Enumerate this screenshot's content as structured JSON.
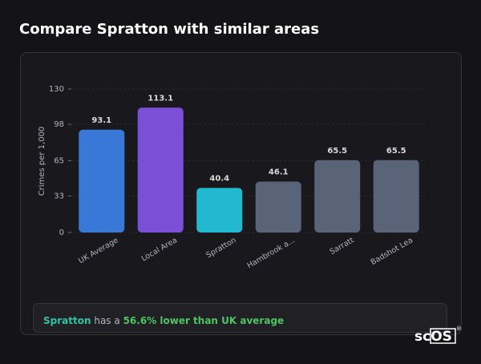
{
  "heading": "Compare Spratton with similar areas",
  "chart_data": {
    "type": "bar",
    "y_label": "Crimes per 1,000",
    "categories": [
      "UK Average",
      "Local Area",
      "Spratton",
      "Hambrook a...",
      "Sarratt",
      "Badshot Lea"
    ],
    "values": [
      93.1,
      113.1,
      40.4,
      46.1,
      65.5,
      65.5
    ],
    "colors": [
      "#3a78d8",
      "#7b4fd6",
      "#22b8d0",
      "#5a6478",
      "#5a6478",
      "#5a6478"
    ],
    "ylim": [
      0,
      130
    ],
    "yticks": [
      0,
      33,
      65,
      98,
      130
    ],
    "grid": true
  },
  "summary": {
    "place": "Spratton",
    "text": "has a",
    "highlight": "56.6% lower than UK average"
  },
  "logo": {
    "text": "scOS",
    "mark": "®"
  }
}
